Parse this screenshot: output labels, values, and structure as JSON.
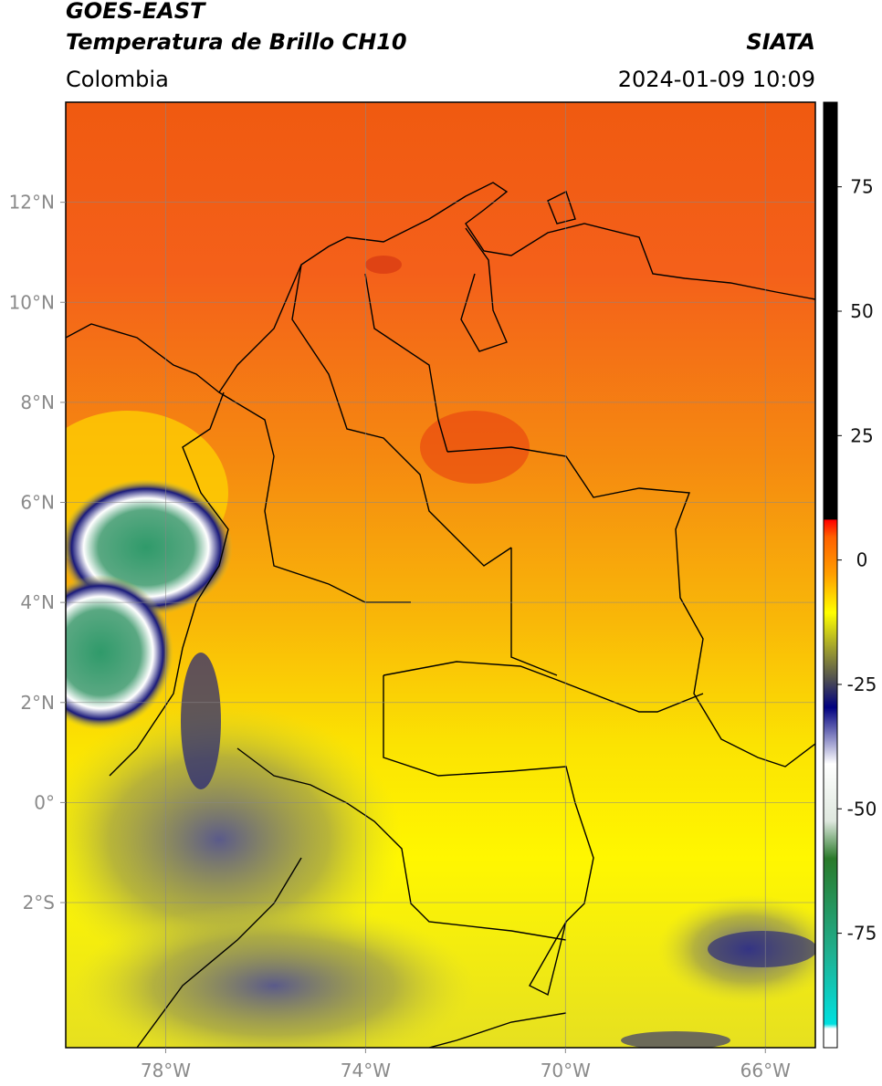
{
  "header": {
    "title": "GOES-EAST",
    "subtitle": "Temperatura de Brillo CH10",
    "region": "Colombia",
    "agency": "SIATA",
    "datetime": "2024-01-09 10:09"
  },
  "map": {
    "lonlim": [
      -80,
      -65
    ],
    "latlim": [
      -4.9,
      14
    ],
    "lonticks": [
      {
        "value": -78,
        "label": "78°W"
      },
      {
        "value": -74,
        "label": "74°W"
      },
      {
        "value": -70,
        "label": "70°W"
      },
      {
        "value": -66,
        "label": "66°W"
      }
    ],
    "latticks": [
      {
        "value": 12,
        "label": "12°N"
      },
      {
        "value": 10,
        "label": "10°N"
      },
      {
        "value": 8,
        "label": "8°N"
      },
      {
        "value": 6,
        "label": "6°N"
      },
      {
        "value": 4,
        "label": "4°N"
      },
      {
        "value": 2,
        "label": "2°N"
      },
      {
        "value": 0,
        "label": "0°"
      },
      {
        "value": -2,
        "label": "2°S"
      }
    ],
    "grid": true
  },
  "colorbar": {
    "lim": [
      -98,
      92
    ],
    "ticks": [
      75,
      50,
      25,
      0,
      -25,
      -50,
      -75
    ]
  }
}
